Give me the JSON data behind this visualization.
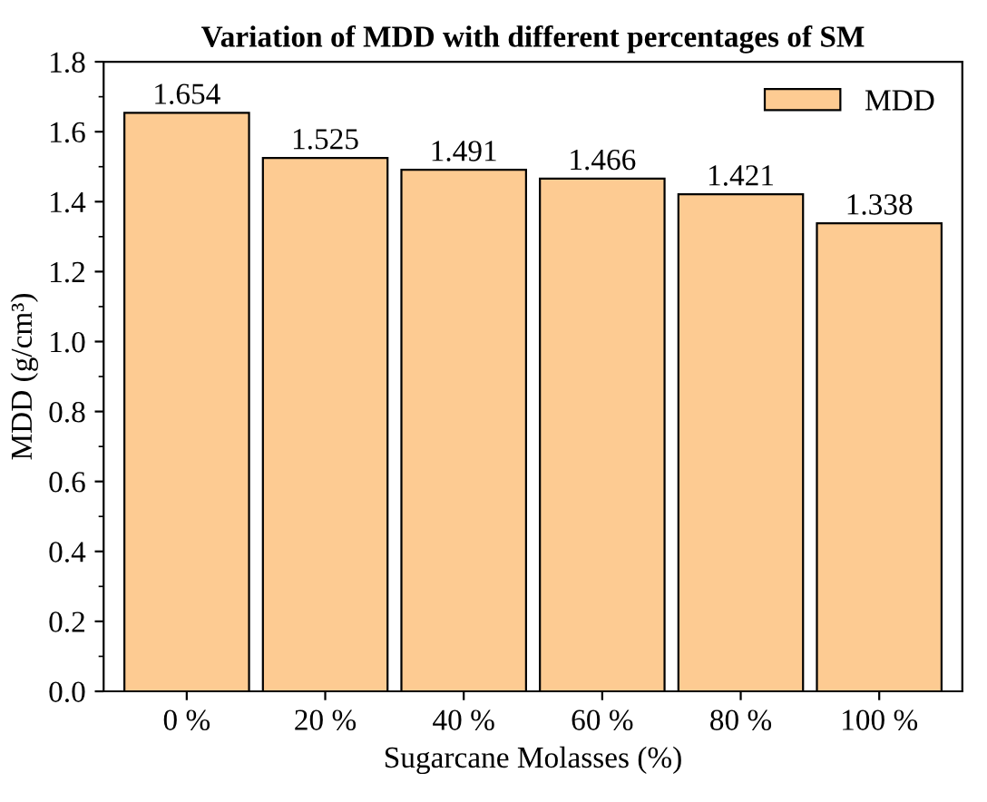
{
  "chart_data": {
    "type": "bar",
    "title": "Variation of MDD with different percentages of SM",
    "xlabel": "Sugarcane Molasses (%)",
    "ylabel": "MDD (g/cm³)",
    "categories": [
      "0 %",
      "20 %",
      "40 %",
      "60 %",
      "80 %",
      "100 %"
    ],
    "series": [
      {
        "name": "MDD",
        "color": "#fdcb92",
        "values": [
          1.654,
          1.525,
          1.491,
          1.466,
          1.421,
          1.338
        ]
      }
    ],
    "ylim": [
      0,
      1.8
    ],
    "yticks": [
      {
        "value": 0,
        "label": "0.0"
      },
      {
        "value": 0.2,
        "label": "0.2"
      },
      {
        "value": 0.4,
        "label": "0.4"
      },
      {
        "value": 0.6,
        "label": "0.6"
      },
      {
        "value": 0.8,
        "label": "0.8"
      },
      {
        "value": 1.0,
        "label": "1.0"
      },
      {
        "value": 1.2,
        "label": "1.2"
      },
      {
        "value": 1.4,
        "label": "1.4"
      },
      {
        "value": 1.6,
        "label": "1.6"
      },
      {
        "value": 1.8,
        "label": "1.8"
      }
    ],
    "data_labels": true,
    "legend": "top right",
    "grid": false
  }
}
